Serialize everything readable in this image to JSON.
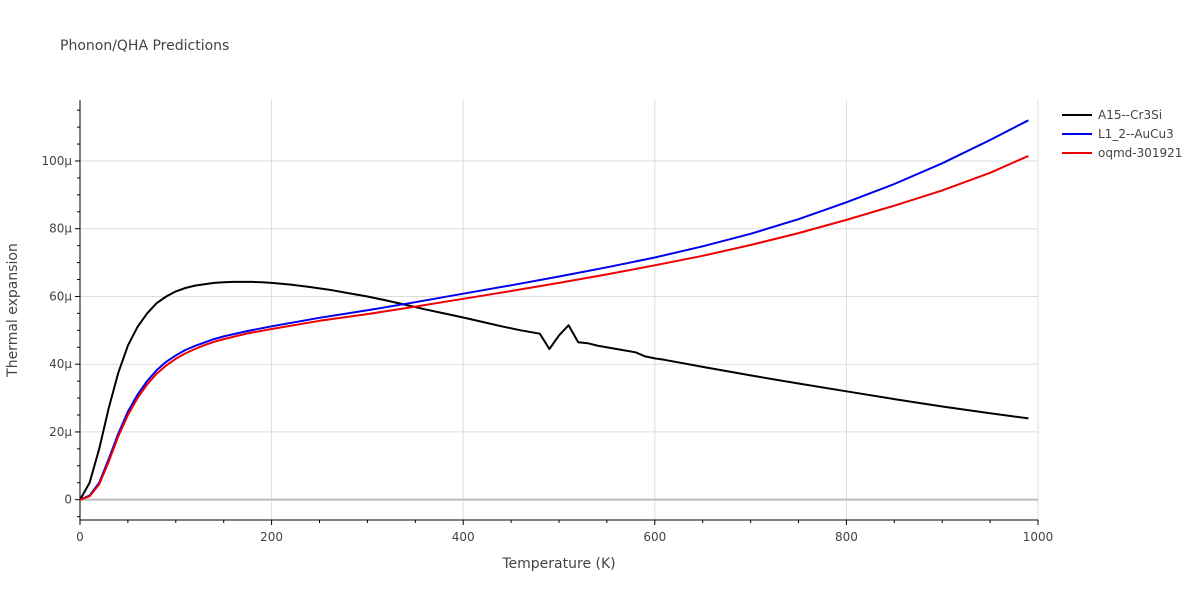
{
  "chart_data": {
    "type": "line",
    "title": "Phonon/QHA Predictions",
    "xlabel": "Temperature (K)",
    "ylabel": "Thermal expansion",
    "xlim": [
      0,
      1000
    ],
    "ylim": [
      -6,
      118
    ],
    "x_ticks": [
      0,
      200,
      400,
      600,
      800,
      1000
    ],
    "x_tick_labels": [
      "0",
      "200",
      "400",
      "600",
      "800",
      "1000"
    ],
    "y_ticks": [
      0,
      20,
      40,
      60,
      80,
      100
    ],
    "y_tick_labels": [
      "0",
      "20μ",
      "40μ",
      "60μ",
      "80μ",
      "100μ"
    ],
    "grid": true,
    "legend_position": "top-right",
    "series": [
      {
        "name": "A15--Cr3Si",
        "color": "#000000",
        "x": [
          0,
          10,
          20,
          30,
          40,
          50,
          60,
          70,
          80,
          90,
          100,
          110,
          120,
          130,
          140,
          150,
          160,
          170,
          180,
          190,
          200,
          220,
          240,
          260,
          280,
          300,
          320,
          340,
          360,
          380,
          400,
          420,
          440,
          460,
          480,
          490,
          500,
          510,
          520,
          530,
          540,
          560,
          580,
          590,
          600,
          610,
          650,
          700,
          750,
          800,
          850,
          900,
          950,
          990
        ],
        "y": [
          0,
          5,
          15,
          27,
          37.5,
          45.5,
          51,
          55,
          58,
          60,
          61.5,
          62.5,
          63.2,
          63.6,
          64,
          64.2,
          64.3,
          64.3,
          64.3,
          64.2,
          64,
          63.5,
          62.8,
          62,
          61,
          60,
          58.8,
          57.5,
          56.2,
          55,
          53.8,
          52.5,
          51.2,
          50,
          49,
          44.5,
          48.5,
          51.5,
          46.5,
          46.2,
          45.5,
          44.5,
          43.5,
          42.3,
          41.7,
          41.3,
          39.2,
          36.7,
          34.3,
          32,
          29.7,
          27.5,
          25.5,
          24
        ]
      },
      {
        "name": "L1_2--AuCu3",
        "color": "#0000ee",
        "x": [
          0,
          10,
          20,
          30,
          40,
          50,
          60,
          70,
          80,
          90,
          100,
          110,
          120,
          130,
          140,
          150,
          175,
          200,
          250,
          300,
          350,
          400,
          450,
          500,
          550,
          600,
          650,
          700,
          750,
          800,
          850,
          900,
          950,
          990
        ],
        "y": [
          0,
          1.2,
          5,
          12,
          19.5,
          26,
          31,
          35,
          38.2,
          40.7,
          42.6,
          44.2,
          45.4,
          46.4,
          47.4,
          48.2,
          49.8,
          51.2,
          53.7,
          55.9,
          58.3,
          60.8,
          63.3,
          65.9,
          68.6,
          71.5,
          74.8,
          78.5,
          82.8,
          87.8,
          93.2,
          99.3,
          106.2,
          112
        ]
      },
      {
        "name": "oqmd-301921",
        "color": "#ee0000",
        "x": [
          0,
          10,
          20,
          30,
          40,
          50,
          60,
          70,
          80,
          90,
          100,
          110,
          120,
          130,
          140,
          150,
          175,
          200,
          250,
          300,
          350,
          400,
          450,
          500,
          550,
          600,
          650,
          700,
          750,
          800,
          850,
          900,
          950,
          990
        ],
        "y": [
          0,
          1,
          4.5,
          11.2,
          18.7,
          25,
          30,
          34,
          37.2,
          39.6,
          41.6,
          43.2,
          44.5,
          45.6,
          46.6,
          47.4,
          49.1,
          50.4,
          52.8,
          54.8,
          57,
          59.3,
          61.6,
          64,
          66.5,
          69.2,
          72,
          75.2,
          78.7,
          82.6,
          86.8,
          91.3,
          96.5,
          101.5
        ]
      }
    ]
  }
}
